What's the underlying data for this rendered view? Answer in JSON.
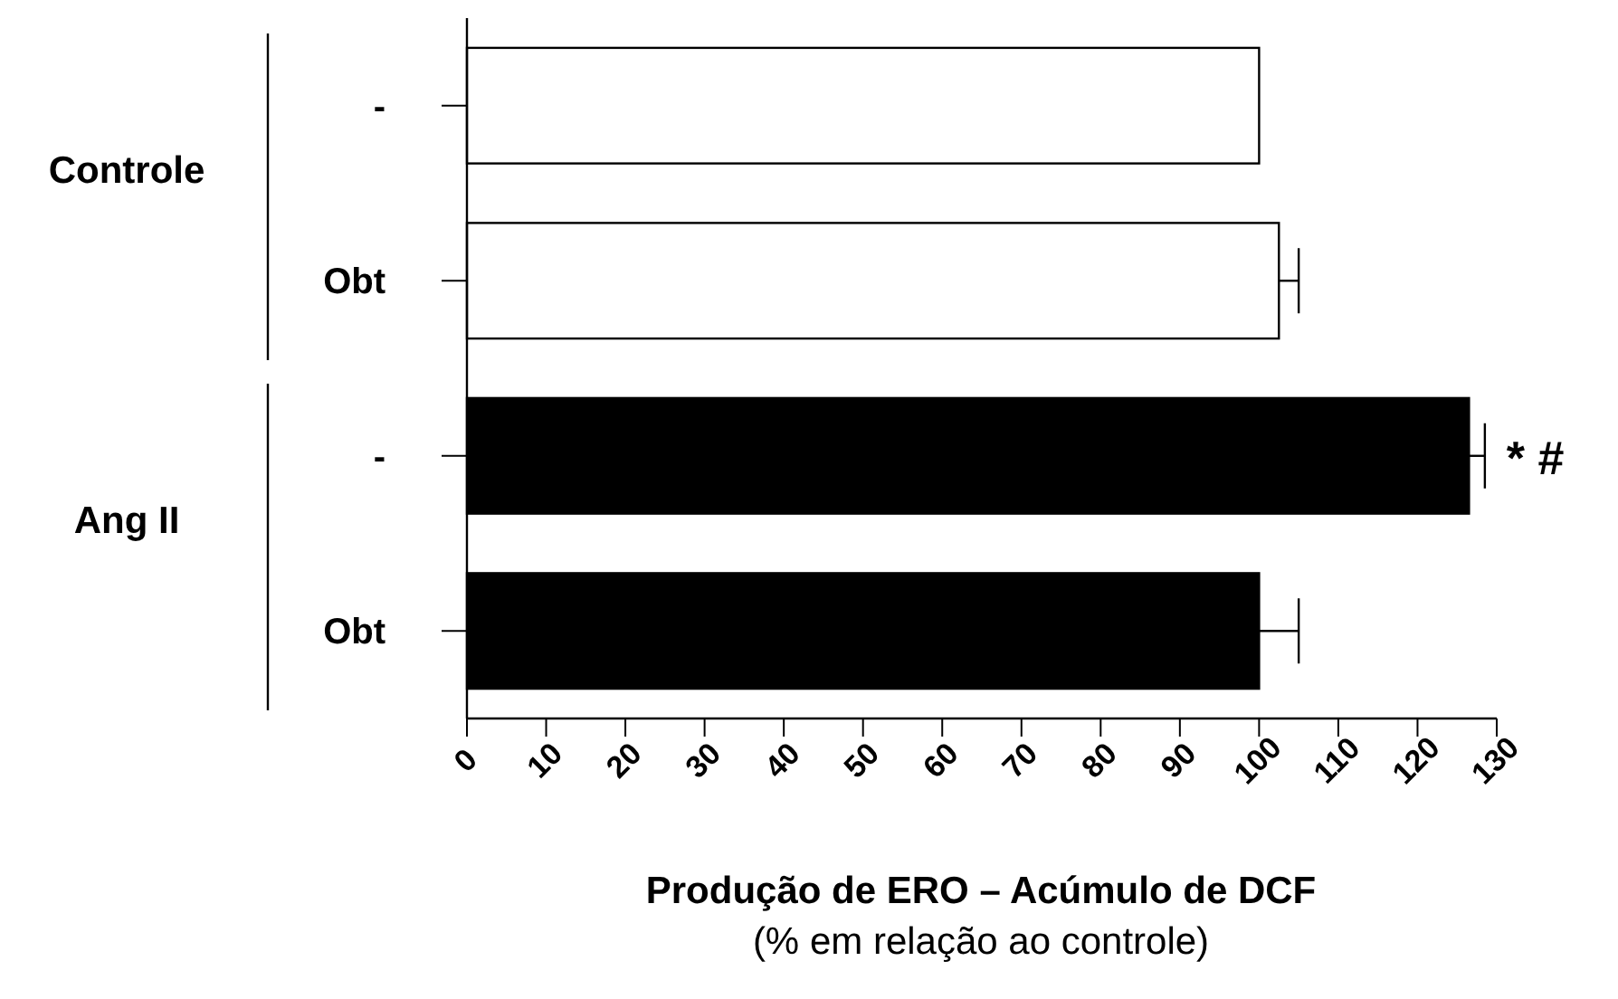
{
  "chart_data": {
    "type": "bar",
    "orientation": "horizontal",
    "xlabel": "Produção de ERO – Acúmulo de DCF\n(% em relação ao controle)",
    "categories": [
      "-",
      "Obt",
      "-",
      "Obt"
    ],
    "values": [
      100,
      102.5,
      126.5,
      100
    ],
    "colors": [
      "#ffffff",
      "#ffffff",
      "#000000",
      "#000000"
    ],
    "errors": [
      null,
      [
        102.5,
        105
      ],
      [
        126.5,
        128.5
      ],
      [
        100,
        105
      ]
    ],
    "xlim": [
      0,
      130
    ],
    "xticks": [
      0,
      10,
      20,
      30,
      40,
      50,
      60,
      70,
      80,
      90,
      100,
      110,
      120,
      130
    ],
    "annotations": [
      "Controle",
      "Ang II",
      "* #"
    ]
  }
}
